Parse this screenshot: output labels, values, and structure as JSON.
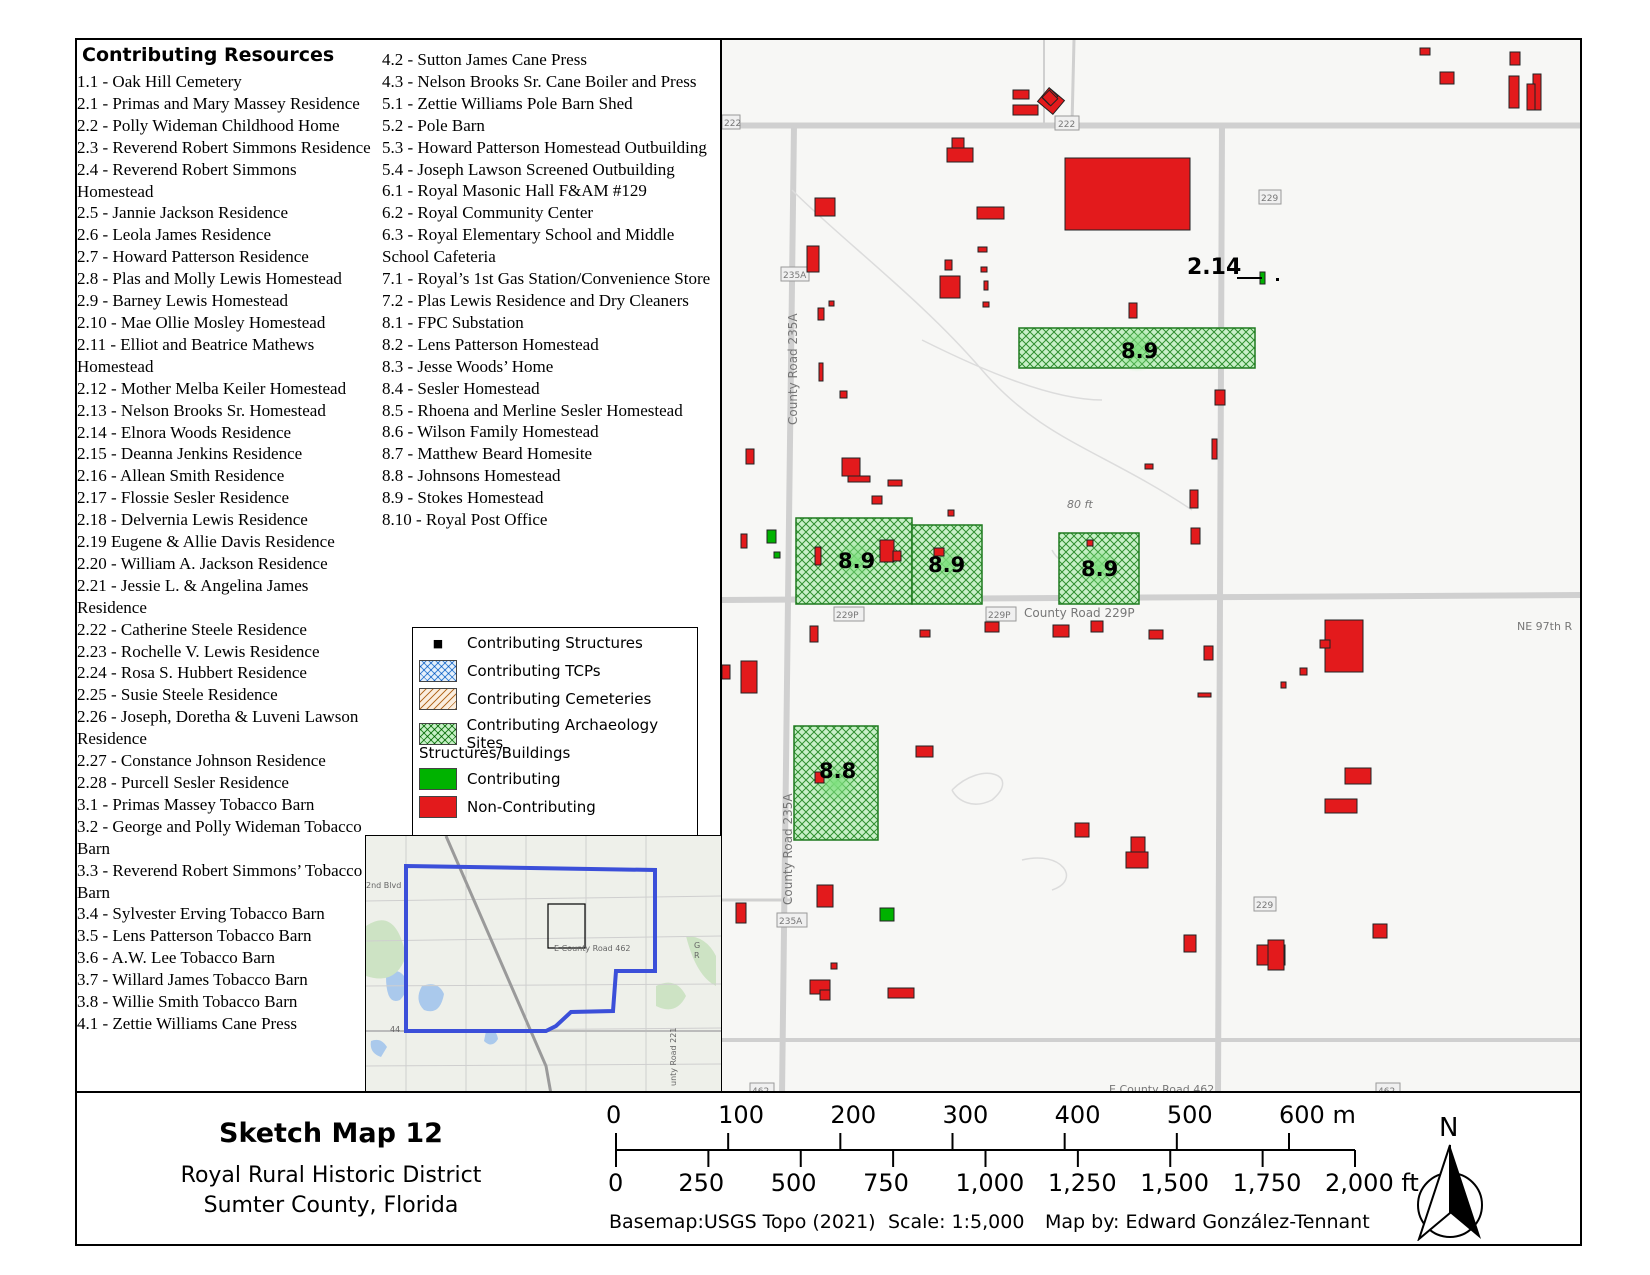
{
  "resources": {
    "title": "Contributing Resources",
    "column1": [
      "1.1 - Oak Hill Cemetery",
      "2.1 - Primas and Mary Massey Residence",
      "2.2 - Polly Wideman Childhood Home",
      "2.3 - Reverend Robert Simmons Residence",
      "2.4 - Reverend Robert Simmons Homestead",
      "2.5 - Jannie Jackson Residence",
      "2.6 - Leola James Residence",
      "2.7 - Howard Patterson Residence",
      "2.8 - Plas and Molly Lewis Homestead",
      "2.9 - Barney Lewis Homestead",
      "2.10 - Mae Ollie Mosley Homestead",
      "2.11 - Elliot and Beatrice Mathews Homestead",
      "2.12 - Mother Melba Keiler Homestead",
      "2.13 - Nelson Brooks Sr. Homestead",
      "2.14 - Elnora Woods Residence",
      "2.15 - Deanna Jenkins Residence",
      "2.16 - Allean Smith Residence",
      "2.17 - Flossie Sesler Residence",
      "2.18 - Delvernia Lewis Residence",
      "2.19 Eugene & Allie Davis Residence",
      "2.20 - William A. Jackson Residence",
      "2.21 - Jessie L. & Angelina James Residence",
      "2.22 - Catherine Steele Residence",
      "2.23 -  Rochelle V. Lewis Residence",
      "2.24 - Rosa S. Hubbert Residence",
      "2.25 - Susie Steele Residence",
      "2.26 - Joseph, Doretha & Luveni Lawson Residence",
      "2.27 - Constance Johnson Residence",
      "2.28 - Purcell Sesler Residence",
      "3.1 - Primas Massey Tobacco Barn",
      "3.2 - George and Polly Wideman Tobacco Barn",
      "3.3 - Reverend Robert Simmons’ Tobacco Barn",
      "3.4 - Sylvester Erving Tobacco Barn",
      "3.5 - Lens Patterson Tobacco Barn",
      "3.6 - A.W. Lee Tobacco Barn",
      "3.7 - Willard James Tobacco Barn",
      "3.8 - Willie Smith Tobacco Barn",
      "4.1 - Zettie Williams Cane Press"
    ],
    "column2": [
      "4.2 - Sutton James Cane Press",
      "4.3 - Nelson Brooks Sr. Cane Boiler and Press",
      "5.1 - Zettie Williams Pole Barn Shed",
      "5.2 - Pole Barn",
      "5.3 - Howard Patterson Homestead Outbuilding",
      "5.4 - Joseph Lawson Screened Outbuilding",
      "6.1 - Royal Masonic Hall F&AM #129",
      "6.2 - Royal Community Center",
      "6.3 - Royal Elementary School and Middle School Cafeteria",
      "7.1 - Royal’s 1st Gas Station/Convenience Store",
      "7.2 - Plas Lewis Residence and Dry Cleaners",
      "8.1 - FPC Substation",
      "8.2 - Lens Patterson Homestead",
      "8.3 - Jesse Woods’ Home",
      "8.4 - Sesler Homestead",
      "8.5 - Rhoena and Merline Sesler Homestead",
      "8.6 - Wilson Family Homestead",
      "8.7 - Matthew Beard Homesite",
      "8.8 - Johnsons Homestead",
      "8.9 - Stokes Homestead",
      "8.10 - Royal Post Office"
    ]
  },
  "legend": {
    "structures": "Contributing Structures",
    "tcps": "Contributing TCPs",
    "cemeteries": "Contributing Cemeteries",
    "archaeology": "Contributing Archaeology Sites",
    "buildings_heading": "Structures/Buildings",
    "contributing": "Contributing",
    "non_contributing": "Non-Contributing",
    "colors": {
      "contributing": "#00b200",
      "non_contributing": "#e31a1c",
      "archaeology": "#2f8f2f",
      "tcp": "#4a90d9",
      "cemetery": "#b5702a"
    }
  },
  "map": {
    "site_labels": {
      "site_a": "8.9",
      "site_b": "8.9",
      "site_c": "8.9",
      "site_d": "8.9",
      "site_e": "8.8"
    },
    "callout_label": "2.14",
    "roads": {
      "shield_222": "222",
      "shield_222b": "222",
      "shield_229_a": "229",
      "shield_229_b": "229",
      "shield_235a_a": "235A",
      "shield_235a_b": "235A",
      "shield_229p_a": "229P",
      "shield_229p_b": "229P",
      "shield_462_a": "462",
      "shield_462_b": "462",
      "cr_235a_upper": "County Road 235A",
      "cr_235a_lower": "County Road 235A",
      "cr_229p": "County Road 229P",
      "ne97th": "NE 97th R",
      "e_cr_462": "E County Road 462",
      "contour_label": "80 ft"
    }
  },
  "inset": {
    "label_2nd_blvd": "2nd Blvd",
    "label_e_cr_462": "E County Road 462",
    "label_county_road_221": "unty Road 221",
    "label_44": "44",
    "label_g": "G",
    "label_r": "R"
  },
  "title_block": {
    "title": "Sketch Map 12",
    "line1": "Royal Rural Historic District",
    "line2": "Sumter County, Florida"
  },
  "scale_bar": {
    "meters": [
      "0",
      "100",
      "200",
      "300",
      "400",
      "500",
      "600 m"
    ],
    "feet": [
      "0",
      "250",
      "500",
      "750",
      "1,000",
      "1,250",
      "1,500",
      "1,750",
      "2,000 ft"
    ],
    "basemap": "Basemap:USGS Topo (2021)",
    "scale": "Scale: 1:5,000",
    "author": "Map by: Edward González-Tennant",
    "north": "N"
  }
}
